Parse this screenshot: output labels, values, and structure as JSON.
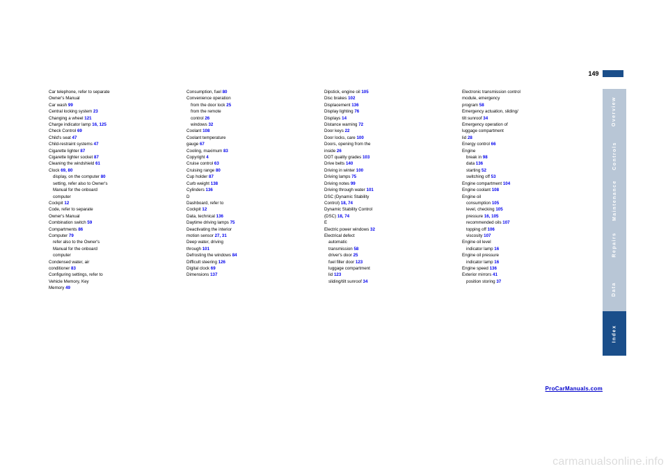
{
  "page_number": "149",
  "tabs": [
    {
      "label": "Overview",
      "style": "light"
    },
    {
      "label": "Controls",
      "style": "light"
    },
    {
      "label": "Maintenance",
      "style": "light"
    },
    {
      "label": "Repairs",
      "style": "light"
    },
    {
      "label": "Data",
      "style": "light"
    },
    {
      "label": "Index",
      "style": "dark"
    }
  ],
  "columns": [
    [
      {
        "t": "Car telephone, refer to separate"
      },
      {
        "t": "Owner's Manual"
      },
      {
        "t": "Car wash",
        "r": "99"
      },
      {
        "t": "Central locking system",
        "r": "23"
      },
      {
        "t": "Changing a wheel",
        "r": "121"
      },
      {
        "t": "Charge indicator lamp",
        "r": "16, 125"
      },
      {
        "t": "Check Control",
        "r": "69"
      },
      {
        "t": "Child's seat",
        "r": "47"
      },
      {
        "t": "Child-restraint systems",
        "r": "47"
      },
      {
        "t": "Cigarette lighter",
        "r": "87"
      },
      {
        "t": "Cigarette lighter socket",
        "r": "87"
      },
      {
        "t": "Cleaning the windshield",
        "r": "61"
      },
      {
        "t": "Clock",
        "r": "69, 80"
      },
      {
        "t": "display, on the computer",
        "r": "80",
        "sub": true
      },
      {
        "t": "setting, refer also to Owner's",
        "sub": true
      },
      {
        "t": "Manual for the onboard",
        "sub": true
      },
      {
        "t": "computer",
        "sub": true
      },
      {
        "t": "Cockpit",
        "r": "12"
      },
      {
        "t": "Code, refer to separate"
      },
      {
        "t": "Owner's Manual"
      },
      {
        "t": "Combination switch",
        "r": "59"
      },
      {
        "t": "Compartments",
        "r": "86"
      },
      {
        "t": "Computer",
        "r": "79"
      },
      {
        "t": "refer also to the Owner's",
        "sub": true
      },
      {
        "t": "Manual for the onboard",
        "sub": true
      },
      {
        "t": "computer",
        "sub": true
      },
      {
        "t": "Condensed water, air"
      },
      {
        "t": "conditioner",
        "r": "83"
      },
      {
        "t": "Configuring settings, refer to"
      },
      {
        "t": "Vehicle Memory, Key"
      },
      {
        "t": "Memory",
        "r": "49"
      }
    ],
    [
      {
        "t": "Consumption, fuel",
        "r": "80"
      },
      {
        "t": "Convenience operation"
      },
      {
        "t": "from the door lock",
        "r": "25",
        "sub": true
      },
      {
        "t": "from the remote",
        "sub": true
      },
      {
        "t": "control",
        "r": "26",
        "sub": true
      },
      {
        "t": "windows",
        "r": "32",
        "sub": true
      },
      {
        "t": "Coolant",
        "r": "108"
      },
      {
        "t": "Coolant temperature"
      },
      {
        "t": "gauge",
        "r": "67"
      },
      {
        "t": "Cooling, maximum",
        "r": "83"
      },
      {
        "t": "Copyright",
        "r": "4"
      },
      {
        "t": "Cruise control",
        "r": "63"
      },
      {
        "t": "Cruising range",
        "r": "80"
      },
      {
        "t": "Cup holder",
        "r": "87"
      },
      {
        "t": "Curb weight",
        "r": "138"
      },
      {
        "t": "Cylinders",
        "r": "136"
      },
      {
        "t": ""
      },
      {
        "t": "D"
      },
      {
        "t": "Dashboard, refer to"
      },
      {
        "t": "Cockpit",
        "r": "12"
      },
      {
        "t": "Data, technical",
        "r": "136"
      },
      {
        "t": "Daytime driving lamps",
        "r": "75"
      },
      {
        "t": "Deactivating the interior"
      },
      {
        "t": "motion sensor",
        "r": "27, 31"
      },
      {
        "t": "Deep water, driving"
      },
      {
        "t": "through",
        "r": "101"
      },
      {
        "t": "Defrosting the windows",
        "r": "84"
      },
      {
        "t": "Difficult steering",
        "r": "126"
      },
      {
        "t": "Digital clock",
        "r": "69"
      },
      {
        "t": "Dimensions",
        "r": "137"
      }
    ],
    [
      {
        "t": "Dipstick, engine oil",
        "r": "105"
      },
      {
        "t": "Disc brakes",
        "r": "102"
      },
      {
        "t": "Displacement",
        "r": "136"
      },
      {
        "t": "Display lighting",
        "r": "76"
      },
      {
        "t": "Displays",
        "r": "14"
      },
      {
        "t": "Distance warning",
        "r": "72"
      },
      {
        "t": "Door keys",
        "r": "22"
      },
      {
        "t": "Door locks, care",
        "r": "100"
      },
      {
        "t": "Doors, opening from the"
      },
      {
        "t": "inside",
        "r": "26"
      },
      {
        "t": "DOT quality grades",
        "r": "103"
      },
      {
        "t": "Drive belts",
        "r": "140"
      },
      {
        "t": "Driving in winter",
        "r": "100"
      },
      {
        "t": "Driving lamps",
        "r": "75"
      },
      {
        "t": "Driving notes",
        "r": "99"
      },
      {
        "t": "Driving through water",
        "r": "101"
      },
      {
        "t": "DSC (Dynamic Stability"
      },
      {
        "t": "Control)",
        "r": "18, 74"
      },
      {
        "t": "Dynamic Stability Control"
      },
      {
        "t": "(DSC)",
        "r": "18, 74"
      },
      {
        "t": ""
      },
      {
        "t": "E"
      },
      {
        "t": "Electric power windows",
        "r": "32"
      },
      {
        "t": "Electrical defect"
      },
      {
        "t": "automatic",
        "sub": true
      },
      {
        "t": "transmission",
        "r": "58",
        "sub": true
      },
      {
        "t": "driver's door",
        "r": "25",
        "sub": true
      },
      {
        "t": "fuel filler door",
        "r": "123",
        "sub": true
      },
      {
        "t": "luggage compartment",
        "sub": true
      },
      {
        "t": "lid",
        "r": "123",
        "sub": true
      },
      {
        "t": "sliding/tilt sunroof",
        "r": "34",
        "sub": true
      }
    ],
    [
      {
        "t": "Electronic transmission control"
      },
      {
        "t": "module, emergency"
      },
      {
        "t": "program",
        "r": "58"
      },
      {
        "t": "Emergency actuation, sliding/"
      },
      {
        "t": "tilt sunroof",
        "r": "34"
      },
      {
        "t": "Emergency operation of"
      },
      {
        "t": "luggage compartment"
      },
      {
        "t": "lid",
        "r": "28"
      },
      {
        "t": "Energy control",
        "r": "66"
      },
      {
        "t": "Engine"
      },
      {
        "t": "break in",
        "r": "98",
        "sub": true
      },
      {
        "t": "data",
        "r": "136",
        "sub": true
      },
      {
        "t": "starting",
        "r": "52",
        "sub": true
      },
      {
        "t": "switching off",
        "r": "53",
        "sub": true
      },
      {
        "t": "Engine compartment",
        "r": "104"
      },
      {
        "t": "Engine coolant",
        "r": "108"
      },
      {
        "t": "Engine oil"
      },
      {
        "t": "consumption",
        "r": "105",
        "sub": true
      },
      {
        "t": "level, checking",
        "r": "105",
        "sub": true
      },
      {
        "t": "pressure",
        "r": "16, 105",
        "sub": true
      },
      {
        "t": "recommended oils",
        "r": "107",
        "sub": true
      },
      {
        "t": "topping off",
        "r": "106",
        "sub": true
      },
      {
        "t": "viscosity",
        "r": "107",
        "sub": true
      },
      {
        "t": "Engine oil level"
      },
      {
        "t": "indicator lamp",
        "r": "16",
        "sub": true
      },
      {
        "t": "Engine oil pressure"
      },
      {
        "t": "indicator lamp",
        "r": "16",
        "sub": true
      },
      {
        "t": "Engine speed",
        "r": "136"
      },
      {
        "t": "Exterior mirrors",
        "r": "41"
      },
      {
        "t": "position storing",
        "r": "37",
        "sub": true
      }
    ]
  ],
  "footer_link": "ProCarManuals.com",
  "watermark": "carmanualsonline.info",
  "colors": {
    "link": "#0000ee",
    "tab_light": "#b8c6d6",
    "tab_dark": "#1a4e8a",
    "background": "#ffffff"
  }
}
